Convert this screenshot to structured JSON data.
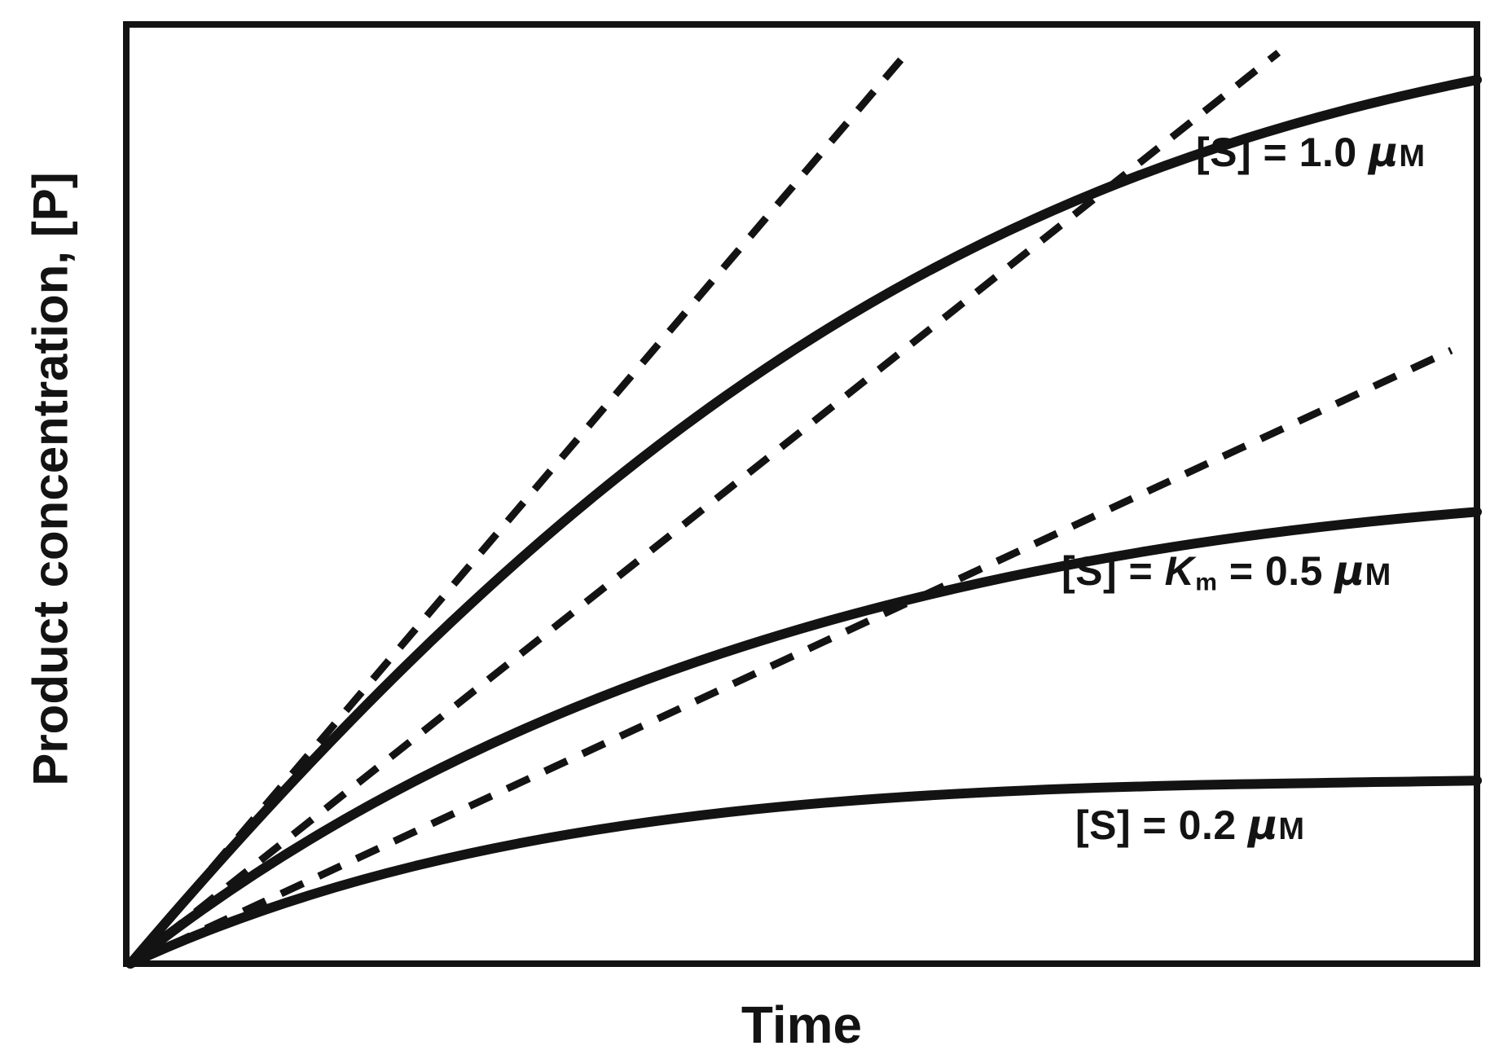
{
  "figure": {
    "ink_color": "#131313",
    "background_color": "#ffffff"
  },
  "chart_data": {
    "type": "line",
    "xlabel": "Time",
    "ylabel": "Product concentration, [P]",
    "layout": {
      "grid": false,
      "axis_tick_labels": false,
      "legend": false,
      "frame": true,
      "note": "Unitless qualitative plot; both axes have no ticks or numeric scale. Coordinates below are fractions of the plot box: x 0=left origin, 1=right edge; y 0=bottom origin, 1=top edge. All six curves emanate from the bottom-left origin."
    },
    "series": [
      {
        "name": "progress-curve-s-1.0uM",
        "label": "[S] = 1.0 μM",
        "style": "solid",
        "shape": "cubic-bezier",
        "points": [
          [
            0.003,
            0.0
          ],
          [
            0.329,
            0.55
          ],
          [
            0.6,
            0.827
          ],
          [
            1.0,
            0.941
          ]
        ]
      },
      {
        "name": "progress-curve-s-0.5uM",
        "label": "[S] = Km = 0.5 μM",
        "style": "solid",
        "shape": "cubic-bezier",
        "points": [
          [
            0.003,
            0.0
          ],
          [
            0.305,
            0.344
          ],
          [
            0.691,
            0.446
          ],
          [
            1.0,
            0.481
          ]
        ]
      },
      {
        "name": "progress-curve-s-0.2uM",
        "label": "[S] = 0.2 μM",
        "style": "solid",
        "shape": "cubic-bezier",
        "points": [
          [
            0.003,
            0.0
          ],
          [
            0.293,
            0.193
          ],
          [
            0.66,
            0.187
          ],
          [
            1.0,
            0.195
          ]
        ]
      },
      {
        "name": "initial-velocity-tangent-s-1.0uM",
        "style": "dashed",
        "shape": "line",
        "points": [
          [
            0.003,
            0.0
          ],
          [
            0.578,
            0.97
          ]
        ]
      },
      {
        "name": "initial-velocity-tangent-s-0.5uM",
        "style": "dashed",
        "shape": "line",
        "points": [
          [
            0.003,
            0.0
          ],
          [
            0.853,
            0.97
          ]
        ]
      },
      {
        "name": "initial-velocity-tangent-s-0.2uM",
        "style": "dashed",
        "shape": "line",
        "points": [
          [
            0.003,
            0.0
          ],
          [
            0.981,
            0.653
          ]
        ]
      }
    ],
    "annotations": [
      {
        "name": "curve-label-s-1.0uM",
        "text": "[S] = 1.0 μM",
        "attached_to": "progress-curve-s-1.0uM",
        "parts": {
          "pre": "[S] = 1.0 ",
          "mu": "μ",
          "unit": "M"
        }
      },
      {
        "name": "curve-label-s-km-0.5uM",
        "text": "[S] = Km = 0.5 μM",
        "attached_to": "progress-curve-s-0.5uM",
        "parts": {
          "pre": "[S] = ",
          "k": "K",
          "k_sub": "m",
          "mid": " = 0.5 ",
          "mu": "μ",
          "unit": "M"
        }
      },
      {
        "name": "curve-label-s-0.2uM",
        "text": "[S] = 0.2 μM",
        "attached_to": "progress-curve-s-0.2uM",
        "parts": {
          "pre": "[S] = 0.2 ",
          "mu": "μ",
          "unit": "M"
        }
      }
    ]
  }
}
